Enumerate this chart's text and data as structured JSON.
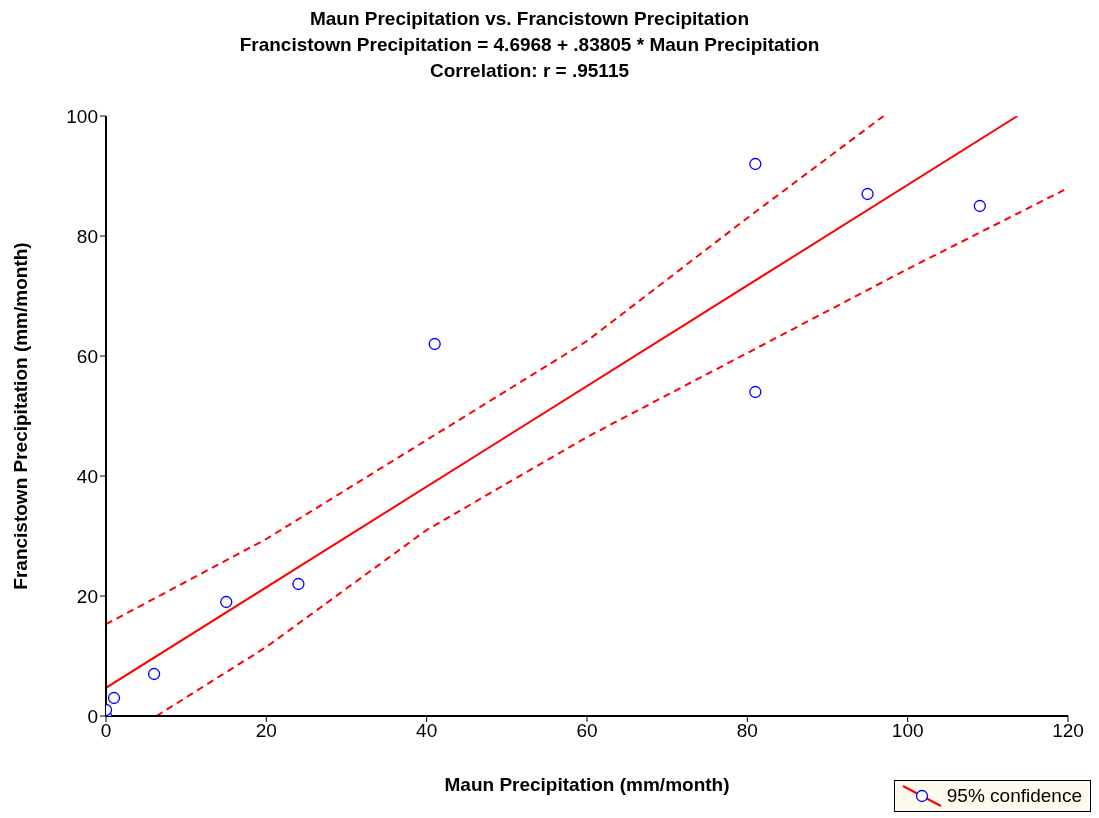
{
  "chart_data": {
    "type": "scatter",
    "title": "Maun Precipitation vs. Francistown Precipitation",
    "subtitle": "Francistown Precipitation = 4.6968 + .83805 * Maun Precipitation",
    "annotations": [
      "Correlation: r = .95115"
    ],
    "xlabel": "Maun Precipitation (mm/month)",
    "ylabel": "Francistown Precipitation (mm/month)",
    "xlim": [
      0,
      120
    ],
    "xticks": [
      0,
      20,
      40,
      60,
      80,
      100,
      120
    ],
    "ylim": [
      0,
      100
    ],
    "yticks": [
      0,
      20,
      40,
      60,
      80,
      100
    ],
    "grid": false,
    "legend": "bottom right",
    "series": [
      {
        "name": "95% confidence",
        "marker": "circle",
        "color": "#0000ff",
        "x": [
          0,
          0,
          1,
          6,
          15,
          24,
          41,
          81,
          81,
          95,
          109
        ],
        "values": [
          0,
          1,
          3,
          7,
          19,
          22,
          62,
          92,
          54,
          87,
          85
        ]
      },
      {
        "type": "line",
        "color": "#ff0000",
        "line_style": "solid",
        "marker": "none",
        "x": [
          0,
          113.7
        ],
        "values": [
          4.7,
          100
        ]
      },
      {
        "type": "line",
        "color": "#ff0000",
        "line_style": "dashed",
        "marker": "none",
        "x": [
          0,
          20,
          40,
          60,
          80,
          97
        ],
        "values": [
          15.3,
          29.5,
          46,
          62.5,
          83,
          100
        ]
      },
      {
        "type": "line",
        "color": "#ff0000",
        "line_style": "dashed",
        "marker": "none",
        "x": [
          6.3,
          20,
          40,
          60,
          80,
          100,
          120
        ],
        "values": [
          0,
          11.5,
          31,
          46.5,
          60.5,
          74.5,
          88
        ]
      }
    ]
  }
}
